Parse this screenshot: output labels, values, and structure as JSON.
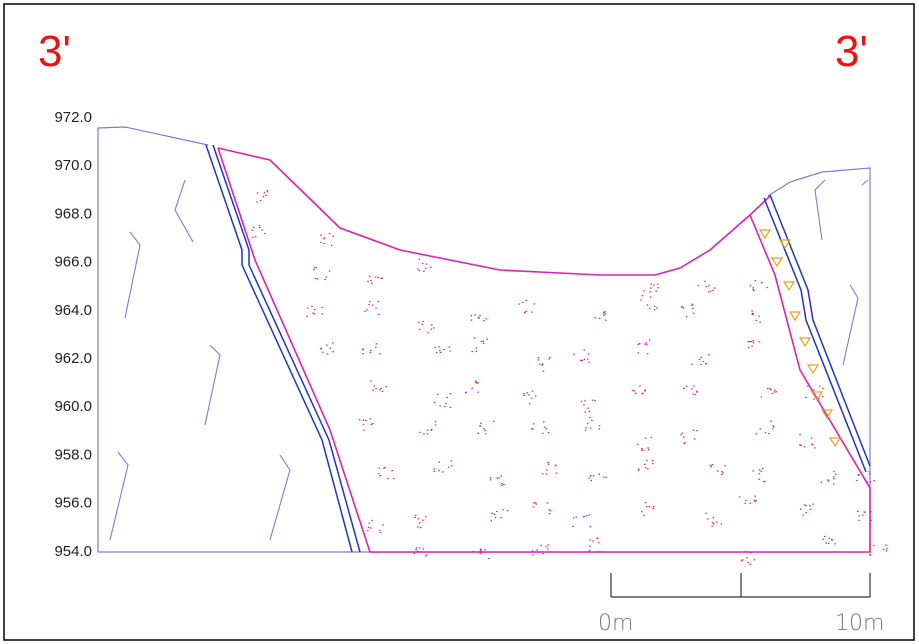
{
  "section": {
    "left_label": "3'",
    "right_label": "3'"
  },
  "elevation_labels": [
    "972.0",
    "970.0",
    "968.0",
    "966.0",
    "964.0",
    "962.0",
    "960.0",
    "958.0",
    "956.0",
    "954.0"
  ],
  "scale_bar": {
    "start_label": "0m",
    "end_label": "10m"
  }
}
